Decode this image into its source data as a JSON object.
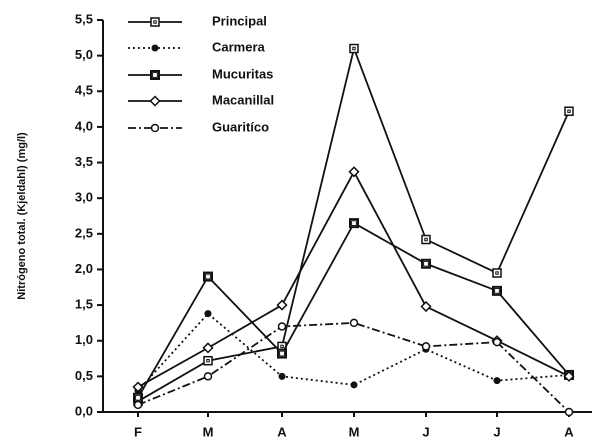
{
  "chart_data": {
    "type": "line",
    "y_label": "Nitrógeno total.   (Kjeldahl)  (mg/l)",
    "categories": [
      "F",
      "M",
      "A",
      "M",
      "J",
      "J",
      "A"
    ],
    "ylim": [
      0,
      5.5
    ],
    "yticks": [
      {
        "value": 0,
        "label": "0,0"
      },
      {
        "value": 0.5,
        "label": "0,5"
      },
      {
        "value": 1,
        "label": "1,0"
      },
      {
        "value": 1.5,
        "label": "1,5"
      },
      {
        "value": 2,
        "label": "2,0"
      },
      {
        "value": 2.5,
        "label": "2,5"
      },
      {
        "value": 3,
        "label": "3,0"
      },
      {
        "value": 3.5,
        "label": "3,5"
      },
      {
        "value": 4,
        "label": "4,0"
      },
      {
        "value": 4.5,
        "label": "4,5"
      },
      {
        "value": 5,
        "label": "5,0"
      },
      {
        "value": 5.5,
        "label": "5,5"
      }
    ],
    "series": [
      {
        "name": "Principal",
        "color": "#111111",
        "dash": "none",
        "marker": "square-dot",
        "values": [
          0.15,
          0.72,
          0.92,
          5.1,
          2.42,
          1.95,
          4.22
        ]
      },
      {
        "name": "Carmera",
        "color": "#111111",
        "dash": "2 3",
        "marker": "filled-circle",
        "values": [
          0.3,
          1.38,
          0.5,
          0.38,
          0.88,
          0.44,
          0.52
        ]
      },
      {
        "name": "Mucuritas",
        "color": "#111111",
        "dash": "none",
        "marker": "square",
        "values": [
          0.2,
          1.9,
          0.82,
          2.65,
          2.08,
          1.7,
          0.52
        ]
      },
      {
        "name": "Macanillal",
        "color": "#111111",
        "dash": "none",
        "marker": "diamond",
        "values": [
          0.35,
          0.9,
          1.5,
          3.37,
          1.48,
          1.0,
          0.5
        ]
      },
      {
        "name": "Guaritíco",
        "color": "#111111",
        "dash": "8 3 2 3",
        "marker": "open-circle",
        "values": [
          0.1,
          0.5,
          1.2,
          1.25,
          0.92,
          0.98,
          0.0
        ]
      }
    ]
  }
}
